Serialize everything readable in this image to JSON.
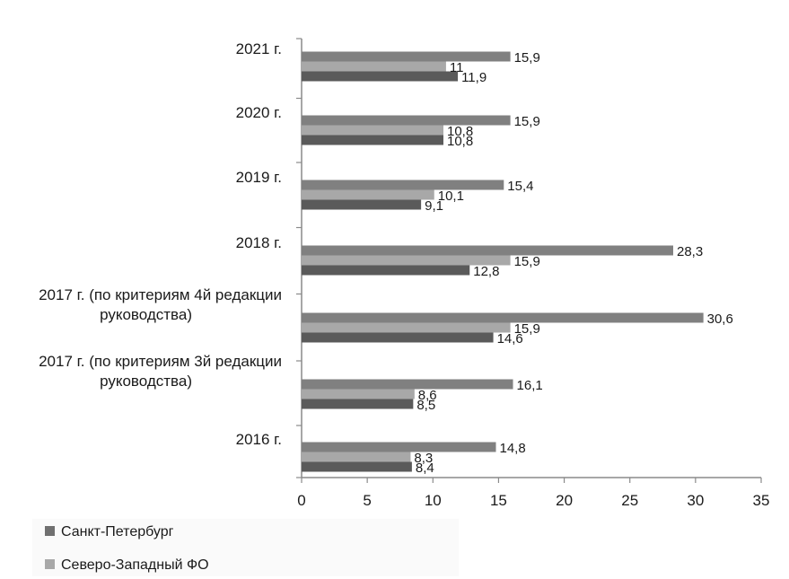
{
  "chart_data": {
    "type": "bar",
    "orientation": "horizontal",
    "categories": [
      [
        "2021 г."
      ],
      [
        "2020 г."
      ],
      [
        "2019 г."
      ],
      [
        "2018 г."
      ],
      [
        "2017 г. (по критериям 4й редакции",
        "руководства)"
      ],
      [
        "2017 г. (по критериям 3й редакции",
        "руководства)"
      ],
      [
        "2016 г."
      ]
    ],
    "series": [
      {
        "values": [
          15.9,
          15.9,
          15.4,
          28.3,
          30.6,
          16.1,
          14.8
        ],
        "labels": [
          "15,9",
          "15,9",
          "15,4",
          "28,3",
          "30,6",
          "16,1",
          "14,8"
        ],
        "color": "#808080"
      },
      {
        "values": [
          11,
          10.8,
          10.1,
          15.9,
          15.9,
          8.6,
          8.3
        ],
        "labels": [
          "11",
          "10,8",
          "10,1",
          "15,9",
          "15,9",
          "8,6",
          "8,3"
        ],
        "color": "#a8a8a8"
      },
      {
        "values": [
          11.9,
          10.8,
          9.1,
          12.8,
          14.6,
          8.5,
          8.4
        ],
        "labels": [
          "11,9",
          "10,8",
          "9,1",
          "12,8",
          "14,6",
          "8,5",
          "8,4"
        ],
        "color": "#5a5a5a"
      }
    ],
    "xlim": [
      0,
      35
    ],
    "xticks": [
      0,
      5,
      10,
      15,
      20,
      25,
      30,
      35
    ],
    "grid": false,
    "legend": {
      "position": "bottom-left",
      "items": [
        {
          "name": "Санкт-Петербург",
          "color": "#707070"
        },
        {
          "name": "Северо-Западный ФО",
          "color": "#a8a8a8"
        }
      ]
    }
  }
}
